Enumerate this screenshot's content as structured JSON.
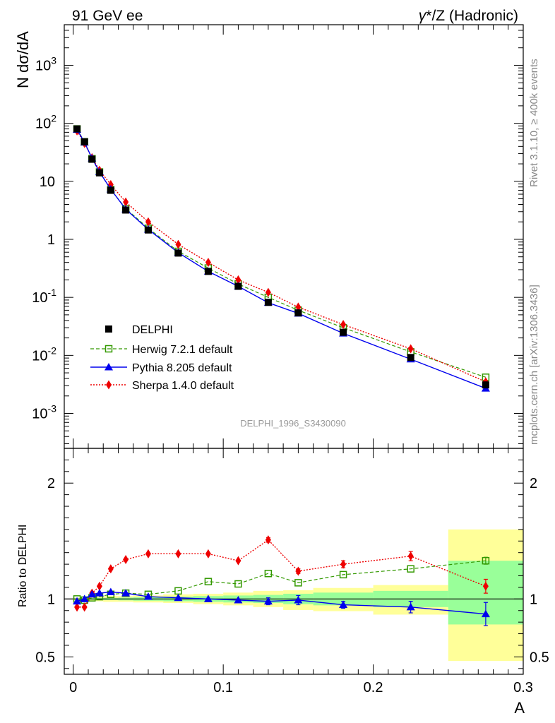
{
  "header": {
    "left_title": "91 GeV ee",
    "right_title_gamma": "γ",
    "right_title_rest": "*/Z (Hadronic)"
  },
  "side_labels": {
    "rivet": "Rivet 3.1.10, ≥ 400k events",
    "mcplots": "mcplots.cern.ch [arXiv:1306.3436]"
  },
  "analysis_tag": "DELPHI_1996_S3430090",
  "colors": {
    "data": "#000000",
    "herwig": "#339900",
    "pythia": "#0000ee",
    "sherpa": "#ee0000",
    "band_outer": "#ffff99",
    "band_inner": "#99ff99"
  },
  "chart_data": [
    {
      "type": "line",
      "title": "91 GeV ee  γ*/Z (Hadronic)",
      "xlabel": "A",
      "ylabel": "N dσ/dA",
      "yscale": "log",
      "ylim": [
        0.00025,
        5000
      ],
      "xlim": [
        -0.006,
        0.3
      ],
      "y_ticks": [
        {
          "value": 0.001,
          "base": "10",
          "exp": "-3"
        },
        {
          "value": 0.01,
          "base": "10",
          "exp": "-2"
        },
        {
          "value": 0.1,
          "base": "10",
          "exp": "-1"
        },
        {
          "value": 1,
          "base": "1",
          "exp": ""
        },
        {
          "value": 10,
          "base": "10",
          "exp": ""
        },
        {
          "value": 100,
          "base": "10",
          "exp": "2"
        },
        {
          "value": 1000,
          "base": "10",
          "exp": "3"
        }
      ],
      "legend_position": "lower-left",
      "x": [
        0.0025,
        0.0075,
        0.0125,
        0.0175,
        0.025,
        0.035,
        0.05,
        0.07,
        0.09,
        0.11,
        0.13,
        0.15,
        0.18,
        0.225,
        0.275
      ],
      "series": [
        {
          "name": "DELPHI",
          "key": "data",
          "marker": "square-filled",
          "values": [
            80,
            48,
            24,
            14,
            7,
            3.2,
            1.45,
            0.58,
            0.28,
            0.155,
            0.082,
            0.054,
            0.025,
            0.0092,
            0.0031
          ]
        },
        {
          "name": "Herwig 7.2.1 default",
          "key": "herwig",
          "marker": "square-open",
          "values": [
            80,
            48,
            24.5,
            14.5,
            7.2,
            3.4,
            1.55,
            0.62,
            0.32,
            0.17,
            0.1,
            0.06,
            0.03,
            0.0115,
            0.0042
          ]
        },
        {
          "name": "Pythia 8.205 default",
          "key": "pythia",
          "marker": "triangle-filled",
          "values": [
            78,
            47,
            25,
            14.5,
            7.3,
            3.3,
            1.48,
            0.59,
            0.28,
            0.155,
            0.081,
            0.053,
            0.024,
            0.0086,
            0.0027
          ]
        },
        {
          "name": "Sherpa 1.4.0 default",
          "key": "sherpa",
          "marker": "diamond-filled",
          "values": [
            74,
            45,
            25.5,
            15.5,
            8.8,
            4.4,
            2.0,
            0.82,
            0.4,
            0.2,
            0.122,
            0.068,
            0.034,
            0.013,
            0.0035
          ]
        }
      ]
    },
    {
      "type": "line",
      "xlabel": "A",
      "ylabel": "Ratio to DELPHI",
      "ylim": [
        0.35,
        2.3
      ],
      "xlim": [
        -0.006,
        0.3
      ],
      "y_ticks": [
        0.5,
        1,
        2
      ],
      "y_tick_labels": [
        "0.5",
        "1",
        "2"
      ],
      "x_ticks": [
        0,
        0.1,
        0.2,
        0.3
      ],
      "x_tick_labels": [
        "0",
        "0.1",
        "0.2",
        "0.3"
      ],
      "reference_line": 1,
      "x": [
        0.0025,
        0.0075,
        0.0125,
        0.0175,
        0.025,
        0.035,
        0.05,
        0.07,
        0.09,
        0.11,
        0.13,
        0.15,
        0.18,
        0.225,
        0.275
      ],
      "uncertainty_bands": {
        "bin_edges": [
          0,
          0.005,
          0.01,
          0.015,
          0.02,
          0.03,
          0.04,
          0.06,
          0.08,
          0.1,
          0.12,
          0.14,
          0.16,
          0.2,
          0.25,
          0.3
        ],
        "outer_low": [
          0.99,
          0.99,
          0.985,
          0.98,
          0.975,
          0.975,
          0.97,
          0.965,
          0.955,
          0.945,
          0.93,
          0.905,
          0.895,
          0.865,
          0.465
        ],
        "outer_high": [
          1.01,
          1.01,
          1.015,
          1.02,
          1.025,
          1.025,
          1.03,
          1.04,
          1.045,
          1.055,
          1.07,
          1.075,
          1.095,
          1.12,
          1.6
        ],
        "inner_low": [
          0.995,
          0.995,
          0.992,
          0.99,
          0.99,
          0.988,
          0.985,
          0.98,
          0.975,
          0.97,
          0.965,
          0.955,
          0.945,
          0.93,
          0.78
        ],
        "inner_high": [
          1.005,
          1.005,
          1.008,
          1.01,
          1.01,
          1.012,
          1.015,
          1.02,
          1.025,
          1.03,
          1.035,
          1.045,
          1.055,
          1.07,
          1.33
        ]
      },
      "series": [
        {
          "name": "Herwig 7.2.1 default",
          "key": "herwig",
          "marker": "square-open",
          "values": [
            1.0,
            0.99,
            1.01,
            1.02,
            1.04,
            1.05,
            1.04,
            1.07,
            1.15,
            1.13,
            1.22,
            1.14,
            1.21,
            1.26,
            1.33
          ],
          "errors": [
            0,
            0,
            0,
            0,
            0,
            0,
            0,
            0,
            0,
            0,
            0,
            0,
            0,
            0,
            0.03
          ]
        },
        {
          "name": "Pythia 8.205 default",
          "key": "pythia",
          "marker": "triangle-filled",
          "values": [
            0.98,
            1.0,
            1.04,
            1.05,
            1.06,
            1.05,
            1.02,
            1.01,
            1.0,
            0.99,
            0.98,
            0.99,
            0.95,
            0.93,
            0.87
          ],
          "errors": [
            0,
            0,
            0,
            0,
            0,
            0,
            0,
            0,
            0,
            0,
            0.03,
            0.04,
            0.03,
            0.05,
            0.1
          ]
        },
        {
          "name": "Sherpa 1.4.0 default",
          "key": "sherpa",
          "marker": "diamond-filled",
          "values": [
            0.93,
            0.93,
            1.05,
            1.11,
            1.26,
            1.34,
            1.39,
            1.39,
            1.39,
            1.33,
            1.51,
            1.24,
            1.3,
            1.37,
            1.11
          ],
          "errors": [
            0,
            0,
            0,
            0,
            0,
            0,
            0,
            0,
            0,
            0,
            0.02,
            0.02,
            0.03,
            0.04,
            0.06
          ]
        }
      ]
    }
  ]
}
